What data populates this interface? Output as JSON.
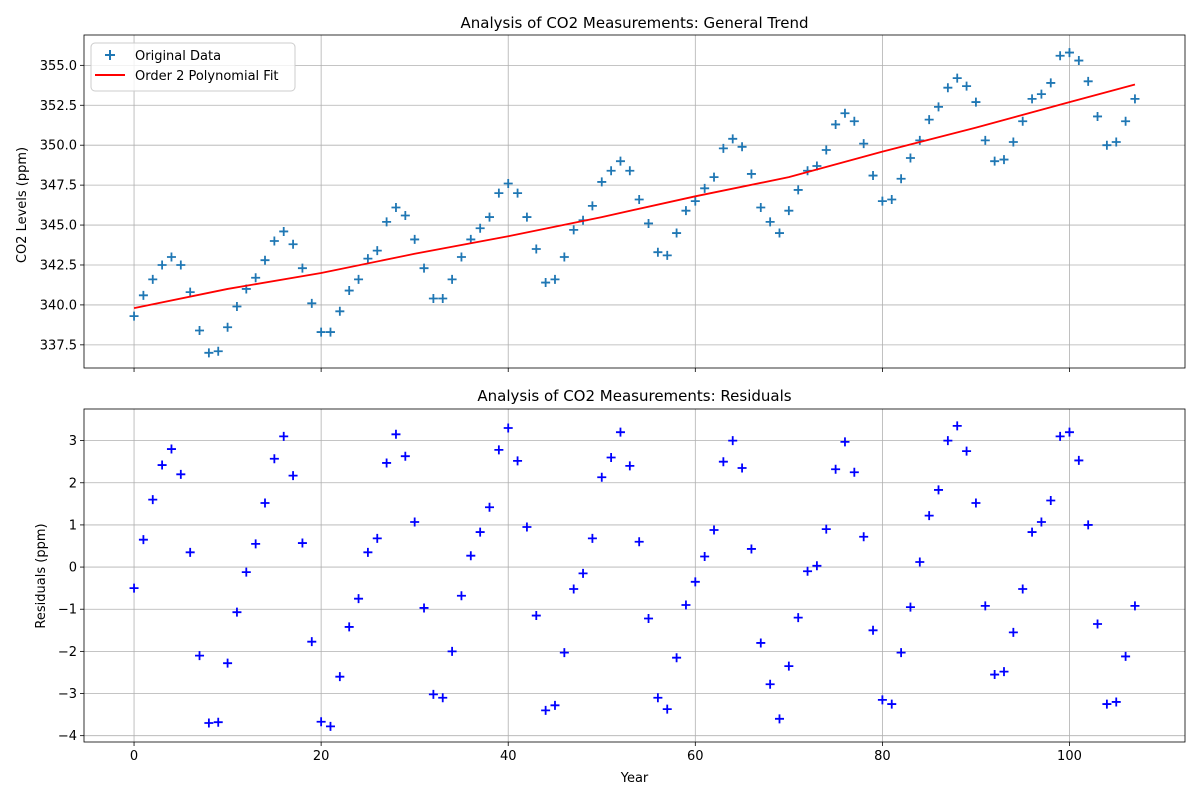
{
  "chart_data": [
    {
      "type": "scatter",
      "title": "Analysis of CO2 Measurements: General Trend",
      "xlabel": "",
      "ylabel": "CO2 Levels (ppm)",
      "xlim": [
        -5.35,
        112.35
      ],
      "ylim": [
        336.05,
        356.9
      ],
      "xticks": [
        0,
        20,
        40,
        60,
        80,
        100
      ],
      "yticks": [
        337.5,
        340.0,
        342.5,
        345.0,
        347.5,
        350.0,
        352.5,
        355.0
      ],
      "ytick_labels": [
        "337.5",
        "340.0",
        "342.5",
        "345.0",
        "347.5",
        "350.0",
        "352.5",
        "355.0"
      ],
      "grid": true,
      "legend_placement": "upper left",
      "marker_color": "#1f77b4",
      "fit_color": "#ff0000",
      "series": [
        {
          "name": "Original Data",
          "kind": "scatter",
          "x": [
            0,
            1,
            2,
            3,
            4,
            5,
            6,
            7,
            8,
            9,
            10,
            11,
            12,
            13,
            14,
            15,
            16,
            17,
            18,
            19,
            20,
            21,
            22,
            23,
            24,
            25,
            26,
            27,
            28,
            29,
            30,
            31,
            32,
            33,
            34,
            35,
            36,
            37,
            38,
            39,
            40,
            41,
            42,
            43,
            44,
            45,
            46,
            47,
            48,
            49,
            50,
            51,
            52,
            53,
            54,
            55,
            56,
            57,
            58,
            59,
            60,
            61,
            62,
            63,
            64,
            65,
            66,
            67,
            68,
            69,
            70,
            71,
            72,
            73,
            74,
            75,
            76,
            77,
            78,
            79,
            80,
            81,
            82,
            83,
            84,
            85,
            86,
            87,
            88,
            89,
            90,
            91,
            92,
            93,
            94,
            95,
            96,
            97,
            98,
            99,
            100,
            101,
            102,
            103,
            104,
            105,
            106,
            107
          ],
          "y": [
            339.3,
            340.6,
            341.6,
            342.5,
            343.0,
            342.5,
            340.8,
            338.4,
            337.0,
            337.1,
            338.6,
            339.9,
            341.0,
            341.7,
            342.8,
            344.0,
            344.6,
            343.8,
            342.3,
            340.1,
            338.3,
            338.3,
            339.6,
            340.9,
            341.6,
            342.9,
            343.4,
            345.2,
            346.1,
            345.6,
            344.1,
            342.3,
            340.4,
            340.4,
            341.6,
            343.0,
            344.1,
            344.8,
            345.5,
            347.0,
            347.6,
            347.0,
            345.5,
            343.5,
            341.4,
            341.6,
            343.0,
            344.7,
            345.3,
            346.2,
            347.7,
            348.4,
            349.0,
            348.4,
            346.6,
            345.1,
            343.3,
            343.1,
            344.5,
            345.9,
            346.5,
            347.3,
            348.0,
            349.8,
            350.4,
            349.9,
            348.2,
            346.1,
            345.2,
            344.5,
            345.9,
            347.2,
            348.4,
            348.7,
            349.7,
            351.3,
            352.0,
            351.5,
            350.1,
            348.1,
            346.5,
            346.6,
            347.9,
            349.2,
            350.3,
            351.6,
            352.4,
            353.6,
            354.2,
            353.7,
            352.7,
            350.3,
            349.0,
            349.1,
            350.2,
            351.5,
            352.9,
            353.2,
            353.9,
            355.6,
            355.8,
            355.3,
            354.0,
            351.8,
            350.0,
            350.2,
            351.5,
            352.9
          ]
        },
        {
          "name": "Order 2 Polynomial Fit",
          "kind": "line",
          "x": [
            0,
            10,
            20,
            30,
            40,
            50,
            60,
            70,
            80,
            90,
            100,
            107
          ],
          "y": [
            339.8,
            341.0,
            342.0,
            343.2,
            344.3,
            345.5,
            346.8,
            348.0,
            349.6,
            351.1,
            352.7,
            353.8
          ]
        }
      ]
    },
    {
      "type": "scatter",
      "title": "Analysis of CO2 Measurements: Residuals",
      "xlabel": "Year",
      "ylabel": "Residuals (ppm)",
      "xlim": [
        -5.35,
        112.35
      ],
      "ylim": [
        -4.15,
        3.75
      ],
      "xticks": [
        0,
        20,
        40,
        60,
        80,
        100
      ],
      "yticks": [
        -4,
        -3,
        -2,
        -1,
        0,
        1,
        2,
        3
      ],
      "ytick_labels": [
        "−4",
        "−3",
        "−2",
        "−1",
        "0",
        "1",
        "2",
        "3"
      ],
      "grid": true,
      "marker_color": "#0000ff",
      "series": [
        {
          "kind": "scatter",
          "x": [
            0,
            1,
            2,
            3,
            4,
            5,
            6,
            7,
            8,
            9,
            10,
            11,
            12,
            13,
            14,
            15,
            16,
            17,
            18,
            19,
            20,
            21,
            22,
            23,
            24,
            25,
            26,
            27,
            28,
            29,
            30,
            31,
            32,
            33,
            34,
            35,
            36,
            37,
            38,
            39,
            40,
            41,
            42,
            43,
            44,
            45,
            46,
            47,
            48,
            49,
            50,
            51,
            52,
            53,
            54,
            55,
            56,
            57,
            58,
            59,
            60,
            61,
            62,
            63,
            64,
            65,
            66,
            67,
            68,
            69,
            70,
            71,
            72,
            73,
            74,
            75,
            76,
            77,
            78,
            79,
            80,
            81,
            82,
            83,
            84,
            85,
            86,
            87,
            88,
            89,
            90,
            91,
            92,
            93,
            94,
            95,
            96,
            97,
            98,
            99,
            100,
            101,
            102,
            103,
            104,
            105,
            106,
            107
          ],
          "y": [
            -0.5,
            0.65,
            1.6,
            2.42,
            2.8,
            2.2,
            0.35,
            -2.1,
            -3.7,
            -3.68,
            -2.28,
            -1.07,
            -0.12,
            0.55,
            1.52,
            2.57,
            3.1,
            2.17,
            0.57,
            -1.77,
            -3.67,
            -3.78,
            -2.6,
            -1.42,
            -0.75,
            0.35,
            0.68,
            2.47,
            3.15,
            2.63,
            1.07,
            -0.97,
            -3.02,
            -3.1,
            -2.0,
            -0.68,
            0.27,
            0.83,
            1.42,
            2.78,
            3.3,
            2.52,
            0.95,
            -1.15,
            -3.4,
            -3.28,
            -2.03,
            -0.52,
            -0.15,
            0.68,
            2.13,
            2.6,
            3.2,
            2.4,
            0.6,
            -1.22,
            -3.1,
            -3.37,
            -2.15,
            -0.9,
            -0.35,
            0.25,
            0.88,
            2.5,
            3.0,
            2.35,
            0.43,
            -1.8,
            -2.78,
            -3.6,
            -2.35,
            -1.2,
            -0.1,
            0.03,
            0.9,
            2.32,
            2.97,
            2.25,
            0.72,
            -1.5,
            -3.15,
            -3.25,
            -2.03,
            -0.95,
            0.12,
            1.22,
            1.83,
            3.0,
            3.35,
            2.75,
            1.52,
            -0.92,
            -2.55,
            -2.48,
            -1.55,
            -0.52,
            0.83,
            1.07,
            1.58,
            3.1,
            3.2,
            2.53,
            1.0,
            -1.35,
            -3.25,
            -3.2,
            -2.12,
            -0.92
          ]
        }
      ]
    }
  ]
}
